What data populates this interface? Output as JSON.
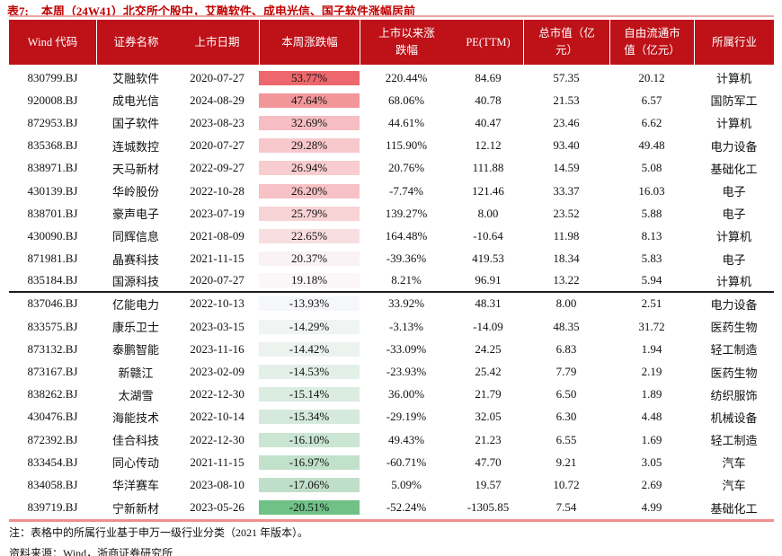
{
  "title": {
    "label": "表7:",
    "text": "本周（24W41）北交所个股中，艾融软件、成电光信、国子软件涨幅居前"
  },
  "colors": {
    "title_red": "#c00000",
    "header_bg": "#be1118",
    "header_text": "#ffffff",
    "top_line": "#eca3a3",
    "bottom_line": "#f0908e",
    "group_divider": "#1e1e1e",
    "heat_max_red": "#ed686c",
    "heat_min_green": "#6fc186"
  },
  "table": {
    "headers": [
      "Wind 代码",
      "证券名称",
      "上市日期",
      "本周涨跌幅",
      "上市以来涨\n跌幅",
      "PE(TTM)",
      "总市值（亿\n元）",
      "自由流通市\n值（亿元）",
      "所属行业"
    ],
    "rows": [
      {
        "code": "830799.BJ",
        "name": "艾融软件",
        "date": "2020-07-27",
        "week": "53.77%",
        "since": "220.44%",
        "pe": "84.69",
        "mcap": "57.35",
        "ffloat": "20.12",
        "industry": "计算机",
        "heat": "#ed686c"
      },
      {
        "code": "920008.BJ",
        "name": "成电光信",
        "date": "2024-08-29",
        "week": "47.64%",
        "since": "68.06%",
        "pe": "40.78",
        "mcap": "21.53",
        "ffloat": "6.57",
        "industry": "国防军工",
        "heat": "#f29699"
      },
      {
        "code": "872953.BJ",
        "name": "国子软件",
        "date": "2023-08-23",
        "week": "32.69%",
        "since": "44.61%",
        "pe": "40.47",
        "mcap": "23.46",
        "ffloat": "6.62",
        "industry": "计算机",
        "heat": "#f6bec2"
      },
      {
        "code": "835368.BJ",
        "name": "连城数控",
        "date": "2020-07-27",
        "week": "29.28%",
        "since": "115.90%",
        "pe": "12.12",
        "mcap": "93.40",
        "ffloat": "49.48",
        "industry": "电力设备",
        "heat": "#f7c8cc"
      },
      {
        "code": "838971.BJ",
        "name": "天马新材",
        "date": "2022-09-27",
        "week": "26.94%",
        "since": "20.76%",
        "pe": "111.88",
        "mcap": "14.59",
        "ffloat": "5.08",
        "industry": "基础化工",
        "heat": "#f8cdd0"
      },
      {
        "code": "430139.BJ",
        "name": "华岭股份",
        "date": "2022-10-28",
        "week": "26.20%",
        "since": "-7.74%",
        "pe": "121.46",
        "mcap": "33.37",
        "ffloat": "16.03",
        "industry": "电子",
        "heat": "#f6c2c6"
      },
      {
        "code": "838701.BJ",
        "name": "豪声电子",
        "date": "2023-07-19",
        "week": "25.79%",
        "since": "139.27%",
        "pe": "8.00",
        "mcap": "23.52",
        "ffloat": "5.88",
        "industry": "电子",
        "heat": "#f8d3d6"
      },
      {
        "code": "430090.BJ",
        "name": "同辉信息",
        "date": "2021-08-09",
        "week": "22.65%",
        "since": "164.48%",
        "pe": "-10.64",
        "mcap": "11.98",
        "ffloat": "8.13",
        "industry": "计算机",
        "heat": "#f9dee1"
      },
      {
        "code": "871981.BJ",
        "name": "晶赛科技",
        "date": "2021-11-15",
        "week": "20.37%",
        "since": "-39.36%",
        "pe": "419.53",
        "mcap": "18.34",
        "ffloat": "5.83",
        "industry": "电子",
        "heat": "#faf2f4"
      },
      {
        "code": "835184.BJ",
        "name": "国源科技",
        "date": "2020-07-27",
        "week": "19.18%",
        "since": "8.21%",
        "pe": "96.91",
        "mcap": "13.22",
        "ffloat": "5.94",
        "industry": "计算机",
        "heat": "#fbf6f7"
      },
      {
        "code": "837046.BJ",
        "name": "亿能电力",
        "date": "2022-10-13",
        "week": "-13.93%",
        "since": "33.92%",
        "pe": "48.31",
        "mcap": "8.00",
        "ffloat": "2.51",
        "industry": "电力设备",
        "heat": "#f6f7fa"
      },
      {
        "code": "833575.BJ",
        "name": "康乐卫士",
        "date": "2023-03-15",
        "week": "-14.29%",
        "since": "-3.13%",
        "pe": "-14.09",
        "mcap": "48.35",
        "ffloat": "31.72",
        "industry": "医药生物",
        "heat": "#f0f5f3"
      },
      {
        "code": "873132.BJ",
        "name": "泰鹏智能",
        "date": "2023-11-16",
        "week": "-14.42%",
        "since": "-33.09%",
        "pe": "24.25",
        "mcap": "6.83",
        "ffloat": "1.94",
        "industry": "轻工制造",
        "heat": "#ecf3ef"
      },
      {
        "code": "873167.BJ",
        "name": "新赣江",
        "date": "2023-02-09",
        "week": "-14.53%",
        "since": "-23.93%",
        "pe": "25.42",
        "mcap": "7.79",
        "ffloat": "2.19",
        "industry": "医药生物",
        "heat": "#e3f0e8"
      },
      {
        "code": "838262.BJ",
        "name": "太湖雪",
        "date": "2022-12-30",
        "week": "-15.14%",
        "since": "36.00%",
        "pe": "21.79",
        "mcap": "6.50",
        "ffloat": "1.89",
        "industry": "纺织服饰",
        "heat": "#dbece1"
      },
      {
        "code": "430476.BJ",
        "name": "海能技术",
        "date": "2022-10-14",
        "week": "-15.34%",
        "since": "-29.19%",
        "pe": "32.05",
        "mcap": "6.30",
        "ffloat": "4.48",
        "industry": "机械设备",
        "heat": "#d5e9dc"
      },
      {
        "code": "872392.BJ",
        "name": "佳合科技",
        "date": "2022-12-30",
        "week": "-16.10%",
        "since": "49.43%",
        "pe": "21.23",
        "mcap": "6.55",
        "ffloat": "1.69",
        "industry": "轻工制造",
        "heat": "#cbe5d3"
      },
      {
        "code": "833454.BJ",
        "name": "同心传动",
        "date": "2021-11-15",
        "week": "-16.97%",
        "since": "-60.71%",
        "pe": "47.70",
        "mcap": "9.21",
        "ffloat": "3.05",
        "industry": "汽车",
        "heat": "#c2e1cb"
      },
      {
        "code": "834058.BJ",
        "name": "华洋赛车",
        "date": "2023-08-10",
        "week": "-17.06%",
        "since": "5.09%",
        "pe": "19.57",
        "mcap": "10.72",
        "ffloat": "2.69",
        "industry": "汽车",
        "heat": "#c0dfca"
      },
      {
        "code": "839719.BJ",
        "name": "宁新新材",
        "date": "2023-05-26",
        "week": "-20.51%",
        "since": "-52.24%",
        "pe": "-1305.85",
        "mcap": "7.54",
        "ffloat": "4.99",
        "industry": "基础化工",
        "heat": "#6fc186"
      }
    ]
  },
  "notes": {
    "note1": "注：表格中的所属行业基于申万一级行业分类（2021 年版本）。",
    "source": "资料来源：Wind，浙商证券研究所"
  }
}
